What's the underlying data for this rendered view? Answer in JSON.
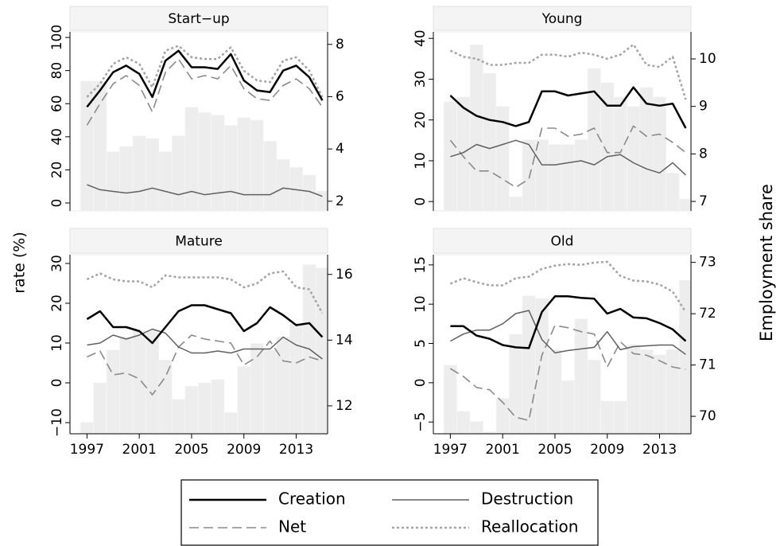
{
  "chart_data": {
    "type": "combo",
    "y_label": "rate (%)",
    "y2_label": "Employment share",
    "bar_color": "#ededed",
    "series": [
      {
        "name": "Creation",
        "color": "#000000",
        "width": 2.5,
        "dash": "none"
      },
      {
        "name": "Destruction",
        "color": "#606060",
        "width": 1.5,
        "dash": "none"
      },
      {
        "name": "Net",
        "color": "#8a8a8a",
        "width": 1.6,
        "dash": "12 6"
      },
      {
        "name": "Reallocation",
        "color": "#a3a3a3",
        "width": 2.5,
        "dash": "3 3"
      }
    ],
    "panels": [
      {
        "title": "Start−up",
        "x": [
          1997,
          1998,
          1999,
          2000,
          2001,
          2002,
          2003,
          2004,
          2005,
          2006,
          2007,
          2008,
          2009,
          2010,
          2011,
          2012,
          2013,
          2014,
          2015
        ],
        "xlim": [
          1995.7,
          2015.4
        ],
        "ylim": [
          -4.8,
          103.4
        ],
        "yticks": [
          0,
          20,
          40,
          60,
          80,
          100
        ],
        "y2lim": [
          1.63,
          8.48
        ],
        "y2ticks": [
          2,
          4,
          6,
          8
        ],
        "bars": [
          6.6,
          6.6,
          3.9,
          4.1,
          4.5,
          4.4,
          3.9,
          4.5,
          5.6,
          5.4,
          5.3,
          4.9,
          5.2,
          5.1,
          4.3,
          3.6,
          3.3,
          3.0,
          2.4
        ],
        "series": [
          {
            "values": [
              58,
              68,
              79,
              83,
              78,
              64,
              86,
              92,
              82,
              82,
              81,
              90,
              74,
              68,
              67,
              80,
              83,
              76,
              62
            ]
          },
          {
            "values": [
              11,
              8,
              7,
              6,
              7,
              9,
              7,
              5,
              7,
              5,
              6,
              7,
              5,
              5,
              5,
              9,
              8,
              7,
              4
            ]
          },
          {
            "values": [
              47,
              60,
              72,
              77,
              71,
              55,
              79,
              87,
              75,
              77,
              75,
              83,
              69,
              63,
              62,
              71,
              75,
              69,
              58
            ]
          },
          {
            "values": [
              64,
              72,
              84,
              88,
              84,
              70,
              92,
              95,
              88,
              87,
              87,
              94,
              80,
              74,
              73,
              86,
              88,
              80,
              64
            ]
          }
        ]
      },
      {
        "title": "Young",
        "x": [
          1997,
          1998,
          1999,
          2000,
          2001,
          2002,
          2003,
          2004,
          2005,
          2006,
          2007,
          2008,
          2009,
          2010,
          2011,
          2012,
          2013,
          2014,
          2015
        ],
        "xlim": [
          1995.7,
          2015.4
        ],
        "ylim": [
          -2.3,
          41.6
        ],
        "yticks": [
          0,
          10,
          20,
          30,
          40
        ],
        "y2lim": [
          6.8,
          10.57
        ],
        "y2ticks": [
          7,
          8,
          9,
          10
        ],
        "bars": [
          9.1,
          9.2,
          10.3,
          9.7,
          9.0,
          7.1,
          8.3,
          8.3,
          8.2,
          8.2,
          8.3,
          9.8,
          9.5,
          9.2,
          9.0,
          9.4,
          9.2,
          7.6,
          7.05
        ],
        "series": [
          {
            "values": [
              26,
              23,
              21,
              20,
              19.5,
              18.5,
              19.5,
              27,
              27,
              26,
              26.5,
              27,
              23.5,
              23.5,
              28,
              24,
              23.5,
              24,
              18
            ]
          },
          {
            "values": [
              11,
              12,
              14,
              13,
              14,
              15,
              14,
              9,
              9,
              9.5,
              10,
              9,
              11,
              11.5,
              9.5,
              8,
              7,
              9.5,
              6.5
            ]
          },
          {
            "values": [
              15,
              11,
              7.5,
              7.5,
              5.5,
              3.5,
              5.5,
              18,
              18,
              16,
              16.5,
              18,
              12,
              12,
              18.5,
              16,
              16.5,
              14.5,
              12
            ]
          },
          {
            "values": [
              37,
              35.5,
              35,
              33.5,
              33.5,
              34,
              34,
              36,
              36,
              35.5,
              36.5,
              36,
              35,
              36,
              38.5,
              33.5,
              33,
              35.5,
              25
            ]
          }
        ]
      },
      {
        "title": "Mature",
        "x": [
          1997,
          1998,
          1999,
          2000,
          2001,
          2002,
          2003,
          2004,
          2005,
          2006,
          2007,
          2008,
          2009,
          2010,
          2011,
          2012,
          2013,
          2014,
          2015
        ],
        "xlim": [
          1995.7,
          2015.4
        ],
        "xticks": [
          1997,
          2001,
          2005,
          2009,
          2013
        ],
        "ylim": [
          -12.8,
          32.2
        ],
        "yticks": [
          {
            "value": -10,
            "label": "−10"
          },
          0,
          10,
          20,
          30
        ],
        "y2lim": [
          11.15,
          16.6
        ],
        "y2ticks": [
          12,
          14,
          16
        ],
        "bars": [
          11.5,
          12.7,
          13.7,
          14.1,
          14.3,
          14.3,
          13.4,
          12.2,
          12.6,
          12.7,
          12.8,
          11.8,
          13.2,
          13.9,
          13.7,
          14.1,
          14.5,
          16.3,
          16.2
        ],
        "series": [
          {
            "values": [
              16,
              18,
              14,
              14,
              13,
              10,
              14,
              18,
              19.5,
              19.5,
              18.5,
              17.5,
              13,
              15,
              19,
              17,
              14.5,
              15,
              11.5
            ]
          },
          {
            "values": [
              9.5,
              10,
              12,
              11,
              12,
              13.5,
              12.5,
              9,
              7.5,
              7.5,
              8,
              7.5,
              8.5,
              8.5,
              8.5,
              11.5,
              9.5,
              8.5,
              6
            ]
          },
          {
            "values": [
              6.5,
              8,
              2,
              2.5,
              1,
              -3,
              1.5,
              9,
              12,
              11,
              10.5,
              10,
              4.5,
              6.5,
              10.5,
              5.5,
              5,
              6.5,
              5.5
            ]
          },
          {
            "values": [
              26,
              27.5,
              26,
              25.5,
              25.5,
              24,
              27,
              26.5,
              26.5,
              26.5,
              26.5,
              26,
              24,
              25,
              27.5,
              28,
              24,
              23.5,
              17.5
            ]
          }
        ]
      },
      {
        "title": "Old",
        "x": [
          1997,
          1998,
          1999,
          2000,
          2001,
          2002,
          2003,
          2004,
          2005,
          2006,
          2007,
          2008,
          2009,
          2010,
          2011,
          2012,
          2013,
          2014,
          2015
        ],
        "xlim": [
          1995.7,
          2015.4
        ],
        "xticks": [
          1997,
          2001,
          2005,
          2009,
          2013
        ],
        "ylim": [
          -6.5,
          16.3
        ],
        "yticks": [
          {
            "value": -5,
            "label": "−5"
          },
          0,
          5,
          10,
          15
        ],
        "y2lim": [
          69.66,
          73.15
        ],
        "y2ticks": [
          70,
          71,
          72,
          73
        ],
        "bars": [
          71.0,
          70.1,
          69.9,
          69.7,
          70.35,
          71.6,
          72.35,
          72.3,
          71.3,
          70.7,
          71.9,
          71.1,
          70.3,
          70.3,
          71.4,
          71.3,
          71.2,
          71.3,
          72.65
        ],
        "series": [
          {
            "values": [
              7.2,
              7.2,
              6,
              5.6,
              4.8,
              4.5,
              4.4,
              9,
              11,
              11,
              10.8,
              10.7,
              8.8,
              9.4,
              8.3,
              8.2,
              7.6,
              6.8,
              5.3
            ]
          },
          {
            "values": [
              5.3,
              6.2,
              6.7,
              6.7,
              7.5,
              8.8,
              9.2,
              5.5,
              3.8,
              4.1,
              4.3,
              4.5,
              6.5,
              4.2,
              4.6,
              4.7,
              4.8,
              4.8,
              3.6
            ]
          },
          {
            "values": [
              1.8,
              0.8,
              -0.6,
              -0.9,
              -2.5,
              -4.4,
              -4.8,
              3.5,
              7.3,
              7,
              6.5,
              6.2,
              2,
              5.2,
              3.7,
              3.5,
              2.8,
              2,
              1.7
            ]
          },
          {
            "values": [
              12.6,
              13.3,
              12.8,
              12.4,
              12.4,
              13.3,
              13.5,
              14.5,
              14.9,
              15.1,
              15,
              15.3,
              15.4,
              13.6,
              13,
              12.9,
              12.5,
              11.6,
              9
            ]
          }
        ]
      }
    ]
  }
}
